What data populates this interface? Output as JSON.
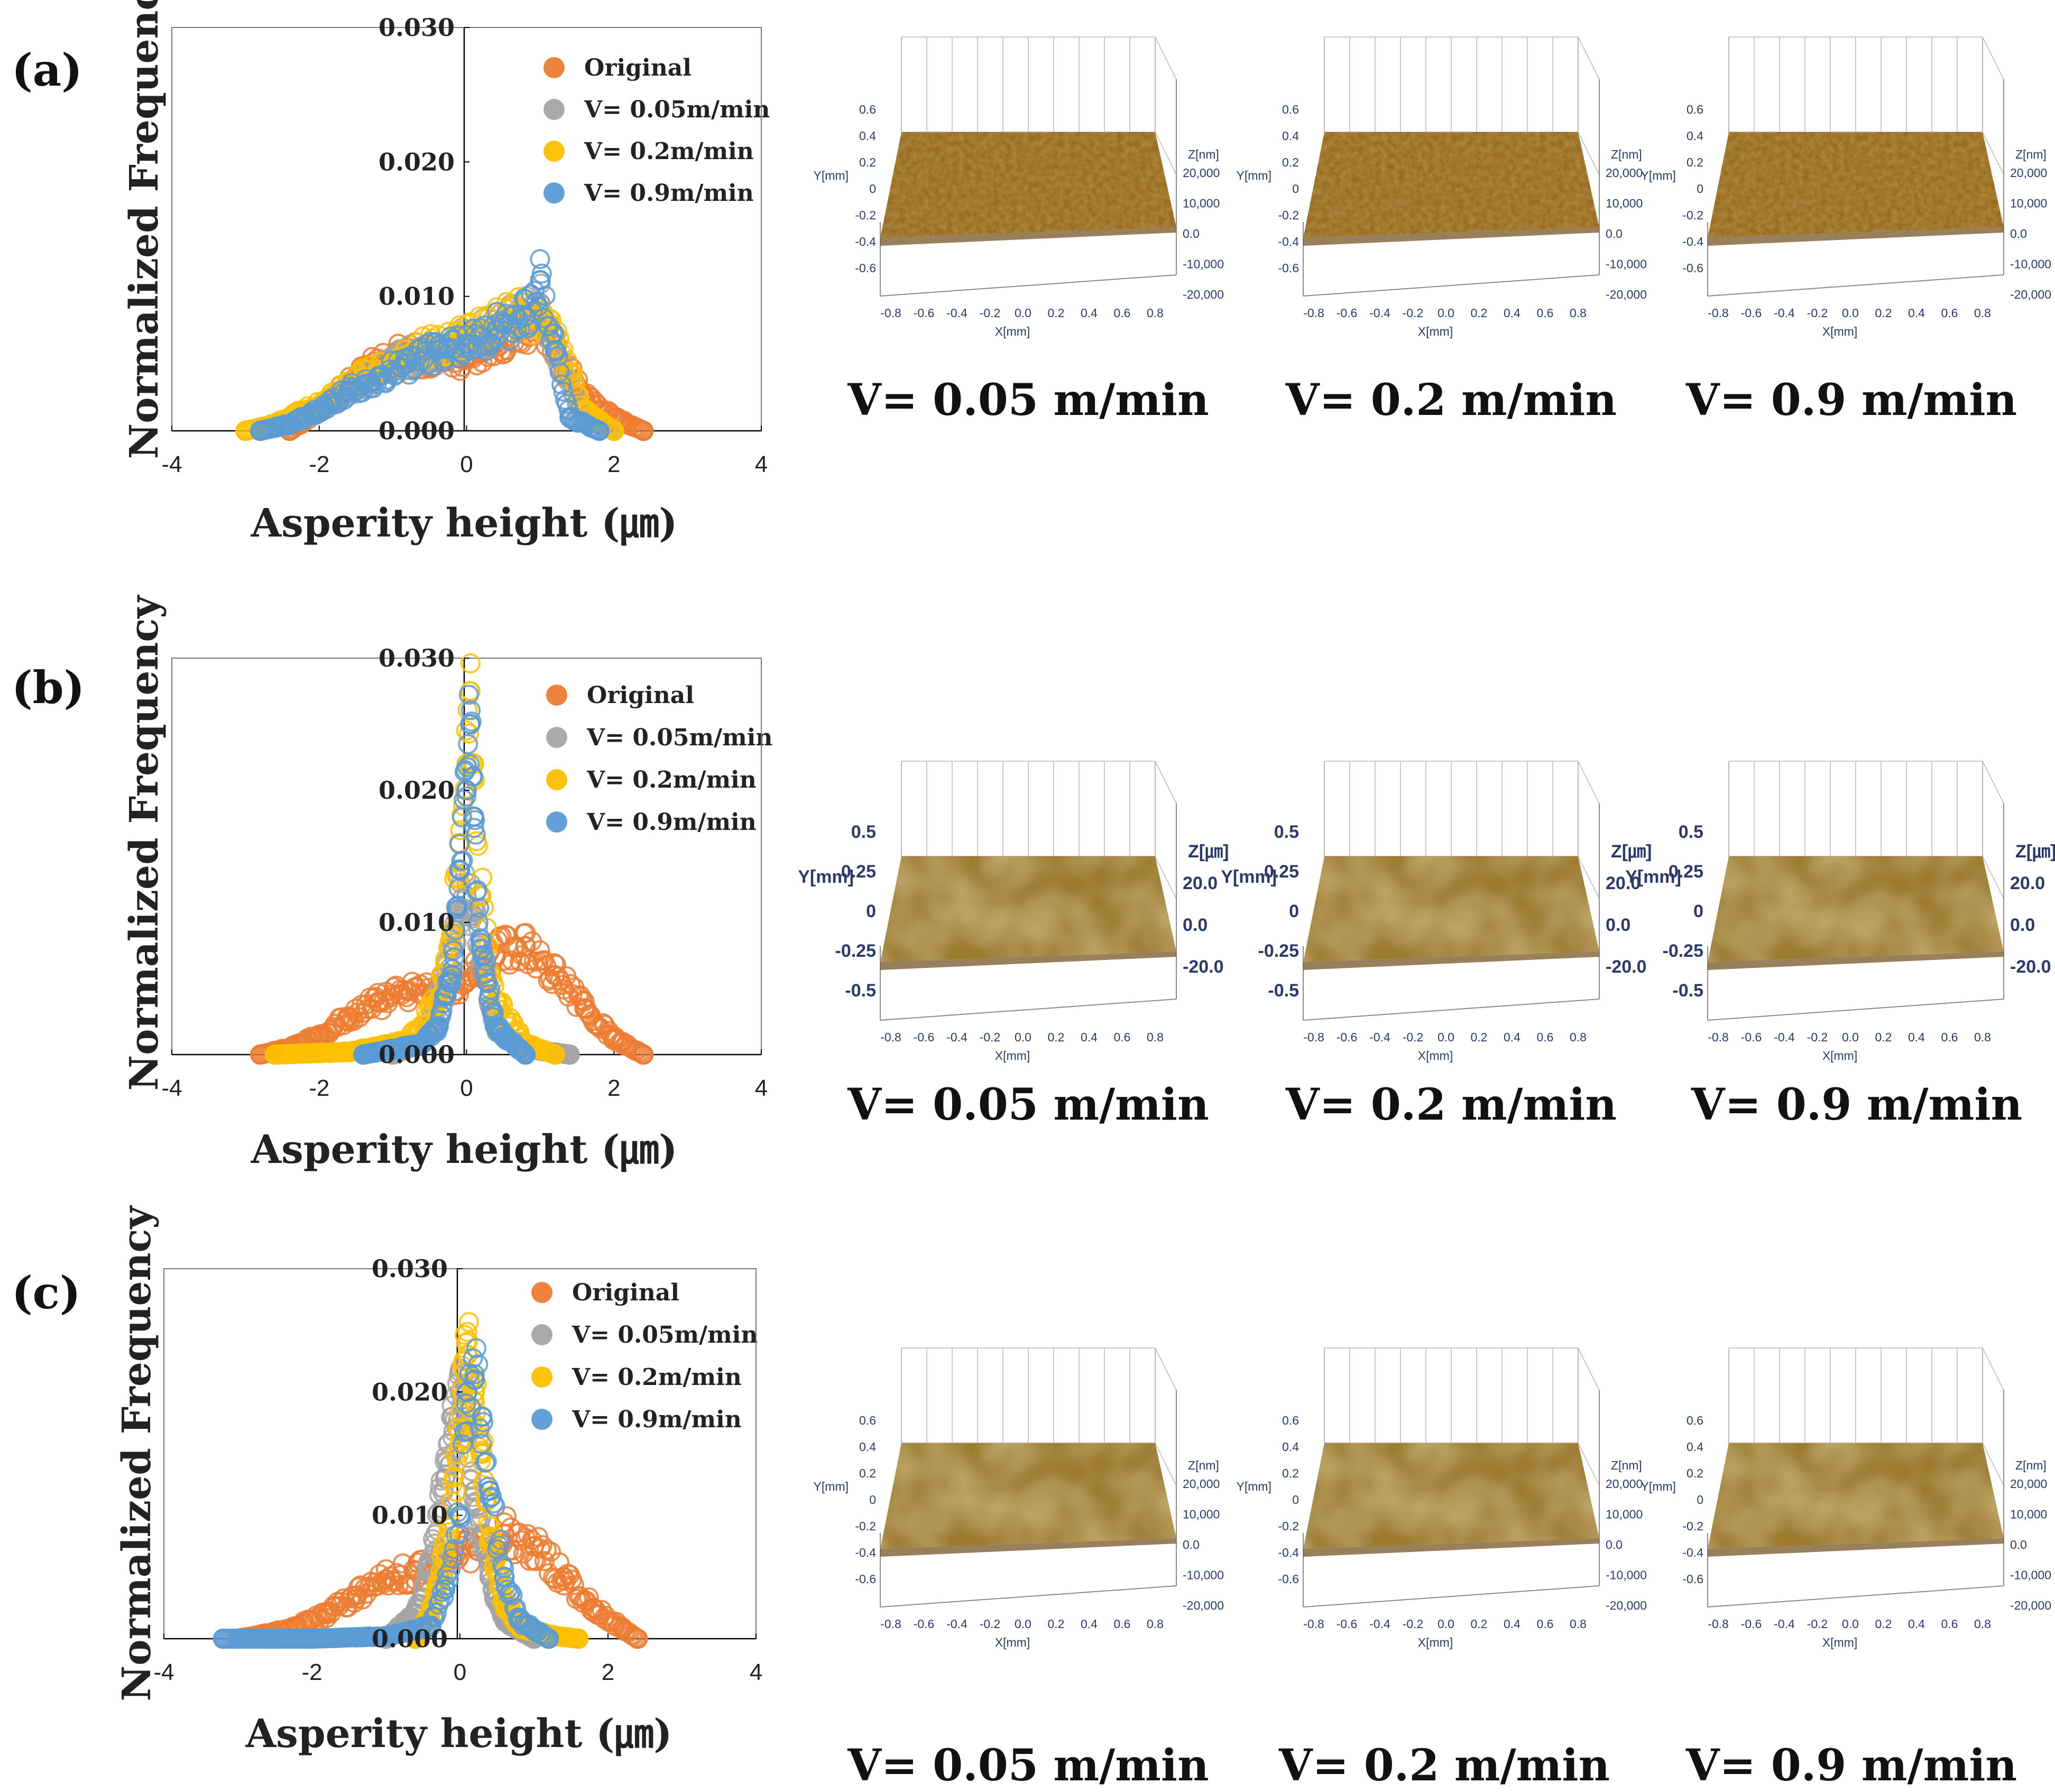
{
  "figure": {
    "panels": [
      {
        "label": "(a)",
        "captions": [
          "V= 0.05 m/min",
          "V= 0.2 m/min",
          "V= 0.9 m/min"
        ],
        "map_style": "rough",
        "map_units": {
          "x": "X[mm]",
          "y": "Y[mm]",
          "z": "Z[nm]"
        },
        "map_xticks": [
          "-0.8",
          "-0.6",
          "-0.4",
          "-0.2",
          "0.0",
          "0.2",
          "0.4",
          "0.6",
          "0.8"
        ],
        "map_yticks": [
          "0.6",
          "0.4",
          "0.2",
          "0",
          "-0.2",
          "-0.4",
          "-0.6"
        ],
        "map_zticks": [
          "20,000",
          "10,000",
          "0.0",
          "-10,000",
          "-20,000"
        ]
      },
      {
        "label": "(b)",
        "captions": [
          "V= 0.05 m/min",
          "V= 0.2 m/min",
          "V= 0.9 m/min"
        ],
        "map_style": "smooth",
        "map_units": {
          "x": "X[mm]",
          "y": "Y[mm]",
          "z": "Z[㎛]"
        },
        "map_xticks": [
          "-0.8",
          "-0.6",
          "-0.4",
          "-0.2",
          "0.0",
          "0.2",
          "0.4",
          "0.6",
          "0.8"
        ],
        "map_yticks": [
          "0.5",
          "0.25",
          "0",
          "-0.25",
          "-0.5"
        ],
        "map_zticks": [
          "20.0",
          "0.0",
          "-20.0"
        ]
      },
      {
        "label": "(c)",
        "captions": [
          "V= 0.05 m/min",
          "V= 0.2 m/min",
          "V= 0.9 m/min"
        ],
        "map_style": "smooth",
        "map_units": {
          "x": "X[mm]",
          "y": "Y[mm]",
          "z": "Z[nm]"
        },
        "map_xticks": [
          "-0.8",
          "-0.6",
          "-0.4",
          "-0.2",
          "0.0",
          "0.2",
          "0.4",
          "0.6",
          "0.8"
        ],
        "map_yticks": [
          "0.6",
          "0.4",
          "0.2",
          "0",
          "-0.2",
          "-0.4",
          "-0.6"
        ],
        "map_zticks": [
          "20,000",
          "10,000",
          "0.0",
          "-10,000",
          "-20,000"
        ]
      }
    ],
    "colors": {
      "Original": "#ed7d31",
      "V= 0.05m/min": "#a5a5a5",
      "V= 0.2m/min": "#ffc000",
      "V= 0.9m/min": "#5b9bd5",
      "surface_rough": "#9a6b22",
      "surface_smooth": "#9c7a2e"
    }
  },
  "chart_data": [
    {
      "type": "scatter",
      "panel": "(a)",
      "title": "",
      "xlabel": "Asperity height (㎛)",
      "ylabel": "Normalized Frequency",
      "xlim": [
        -4,
        4
      ],
      "ylim": [
        0,
        0.03
      ],
      "xticks": [
        "-4",
        "-2",
        "0",
        "2",
        "4"
      ],
      "yticks": [
        "0.000",
        "0.010",
        "0.020",
        "0.030"
      ],
      "legend": [
        "Original",
        "V= 0.05m/min",
        "V= 0.2m/min",
        "V= 0.9m/min"
      ],
      "series": [
        {
          "name": "Original",
          "x": [
            -2.4,
            -2.0,
            -1.6,
            -1.2,
            -0.8,
            -0.4,
            0.0,
            0.4,
            0.8,
            1.0,
            1.2,
            1.6,
            2.0,
            2.4
          ],
          "y": [
            0.0,
            0.0015,
            0.0035,
            0.005,
            0.0058,
            0.0052,
            0.0055,
            0.0065,
            0.0075,
            0.0085,
            0.006,
            0.0025,
            0.001,
            0.0
          ]
        },
        {
          "name": "V= 0.05m/min",
          "x": [
            -2.8,
            -2.4,
            -2.0,
            -1.6,
            -1.2,
            -0.8,
            -0.4,
            0.0,
            0.4,
            0.8,
            1.0,
            1.2,
            1.6,
            2.0
          ],
          "y": [
            0.0,
            0.0005,
            0.0015,
            0.003,
            0.0045,
            0.0055,
            0.0055,
            0.007,
            0.0075,
            0.0085,
            0.0095,
            0.006,
            0.001,
            0.0
          ]
        },
        {
          "name": "V= 0.2m/min",
          "x": [
            -3.0,
            -2.6,
            -2.2,
            -1.8,
            -1.4,
            -1.0,
            -0.6,
            -0.2,
            0.2,
            0.6,
            1.0,
            1.2,
            1.6,
            2.0
          ],
          "y": [
            0.0,
            0.0005,
            0.0015,
            0.0025,
            0.004,
            0.005,
            0.006,
            0.0065,
            0.0075,
            0.0085,
            0.0085,
            0.007,
            0.0015,
            0.0
          ]
        },
        {
          "name": "V= 0.9m/min",
          "x": [
            -2.8,
            -2.4,
            -2.0,
            -1.6,
            -1.2,
            -0.8,
            -0.4,
            0.0,
            0.4,
            0.8,
            1.0,
            1.2,
            1.4,
            1.8
          ],
          "y": [
            0.0,
            0.0005,
            0.0015,
            0.003,
            0.004,
            0.005,
            0.006,
            0.0065,
            0.0075,
            0.0085,
            0.0112,
            0.006,
            0.001,
            0.0
          ]
        }
      ]
    },
    {
      "type": "scatter",
      "panel": "(b)",
      "title": "",
      "xlabel": "Asperity height (㎛)",
      "ylabel": "Normalized Frequency",
      "xlim": [
        -4,
        4
      ],
      "ylim": [
        0,
        0.03
      ],
      "xticks": [
        "-4",
        "-2",
        "0",
        "2",
        "4"
      ],
      "yticks": [
        "0.000",
        "0.010",
        "0.020",
        "0.030"
      ],
      "legend": [
        "Original",
        "V= 0.05m/min",
        "V= 0.2m/min",
        "V= 0.9m/min"
      ],
      "series": [
        {
          "name": "Original",
          "x": [
            -2.8,
            -2.4,
            -2.0,
            -1.6,
            -1.2,
            -0.8,
            -0.4,
            0.0,
            0.4,
            0.8,
            1.2,
            1.6,
            2.0,
            2.4
          ],
          "y": [
            0.0,
            0.0005,
            0.0015,
            0.0028,
            0.004,
            0.0048,
            0.005,
            0.0055,
            0.0075,
            0.0082,
            0.006,
            0.0035,
            0.0012,
            0.0
          ]
        },
        {
          "name": "V= 0.05m/min",
          "x": [
            -1.0,
            -0.6,
            -0.4,
            -0.2,
            -0.1,
            0.0,
            0.1,
            0.2,
            0.4,
            0.6,
            1.0,
            1.4
          ],
          "y": [
            0.0,
            0.001,
            0.004,
            0.008,
            0.011,
            0.012,
            0.0105,
            0.007,
            0.002,
            0.001,
            0.0003,
            0.0
          ]
        },
        {
          "name": "V= 0.2m/min",
          "x": [
            -2.6,
            -1.6,
            -0.8,
            -0.4,
            -0.2,
            -0.1,
            0.0,
            0.05,
            0.1,
            0.2,
            0.4,
            0.8,
            1.2
          ],
          "y": [
            0.0,
            0.0002,
            0.001,
            0.004,
            0.009,
            0.016,
            0.022,
            0.0275,
            0.022,
            0.012,
            0.004,
            0.0008,
            0.0
          ]
        },
        {
          "name": "V= 0.9m/min",
          "x": [
            -1.4,
            -0.6,
            -0.4,
            -0.2,
            -0.1,
            0.0,
            0.05,
            0.1,
            0.2,
            0.4,
            0.8
          ],
          "y": [
            0.0,
            0.0008,
            0.002,
            0.006,
            0.014,
            0.02,
            0.025,
            0.018,
            0.008,
            0.002,
            0.0
          ]
        }
      ]
    },
    {
      "type": "scatter",
      "panel": "(c)",
      "title": "",
      "xlabel": "Asperity height (㎛)",
      "ylabel": "Normalized Frequency",
      "xlim": [
        -4,
        4
      ],
      "ylim": [
        0,
        0.03
      ],
      "xticks": [
        "-4",
        "-2",
        "0",
        "2",
        "4"
      ],
      "yticks": [
        "0.000",
        "0.010",
        "0.020",
        "0.030"
      ],
      "legend": [
        "Original",
        "V= 0.05m/min",
        "V= 0.2m/min",
        "V= 0.9m/min"
      ],
      "series": [
        {
          "name": "Original",
          "x": [
            -3.0,
            -2.6,
            -2.2,
            -1.8,
            -1.4,
            -1.0,
            -0.6,
            -0.2,
            0.2,
            0.6,
            1.0,
            1.4,
            1.8,
            2.2,
            2.4
          ],
          "y": [
            0.0,
            0.0004,
            0.001,
            0.002,
            0.0035,
            0.0048,
            0.0055,
            0.0062,
            0.0075,
            0.0085,
            0.0075,
            0.005,
            0.0025,
            0.0008,
            0.0
          ]
        },
        {
          "name": "V= 0.05m/min",
          "x": [
            -1.0,
            -0.6,
            -0.4,
            -0.2,
            -0.1,
            0.0,
            0.1,
            0.2,
            0.4,
            0.6,
            1.0
          ],
          "y": [
            0.0,
            0.002,
            0.006,
            0.013,
            0.018,
            0.02,
            0.018,
            0.012,
            0.005,
            0.0015,
            0.0
          ]
        },
        {
          "name": "V= 0.2m/min",
          "x": [
            -0.6,
            -0.4,
            -0.2,
            0.0,
            0.05,
            0.1,
            0.2,
            0.3,
            0.4,
            0.6,
            0.8,
            1.2,
            1.6
          ],
          "y": [
            0.0,
            0.002,
            0.007,
            0.016,
            0.0225,
            0.023,
            0.02,
            0.015,
            0.008,
            0.003,
            0.001,
            0.0003,
            0.0
          ]
        },
        {
          "name": "V= 0.9m/min",
          "x": [
            -3.2,
            -2.0,
            -1.0,
            -0.4,
            -0.2,
            0.0,
            0.1,
            0.2,
            0.3,
            0.4,
            0.6,
            0.8,
            1.2
          ],
          "y": [
            0.0,
            0.0,
            0.0002,
            0.001,
            0.004,
            0.01,
            0.02,
            0.021,
            0.018,
            0.012,
            0.005,
            0.0015,
            0.0
          ]
        }
      ]
    }
  ]
}
